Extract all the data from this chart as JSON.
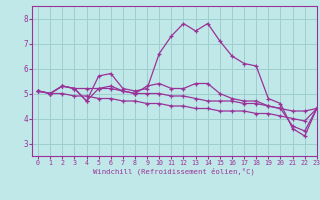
{
  "xlabel": "Windchill (Refroidissement éolien,°C)",
  "xlim": [
    -0.5,
    23
  ],
  "ylim": [
    2.5,
    8.5
  ],
  "yticks": [
    3,
    4,
    5,
    6,
    7,
    8
  ],
  "xticks": [
    0,
    1,
    2,
    3,
    4,
    5,
    6,
    7,
    8,
    9,
    10,
    11,
    12,
    13,
    14,
    15,
    16,
    17,
    18,
    19,
    20,
    21,
    22,
    23
  ],
  "bg_color": "#c0e8e8",
  "grid_color": "#9ecece",
  "line_color": "#993399",
  "lines": [
    [
      5.1,
      5.0,
      5.3,
      5.2,
      4.7,
      5.7,
      5.8,
      5.2,
      5.1,
      5.2,
      6.6,
      7.3,
      7.8,
      7.5,
      7.8,
      7.1,
      6.5,
      6.2,
      6.1,
      4.8,
      4.6,
      3.6,
      3.3,
      4.4
    ],
    [
      5.1,
      5.0,
      5.3,
      5.2,
      4.7,
      5.2,
      5.3,
      5.1,
      5.0,
      5.3,
      5.4,
      5.2,
      5.2,
      5.4,
      5.4,
      5.0,
      4.8,
      4.7,
      4.7,
      4.5,
      4.4,
      3.7,
      3.5,
      4.4
    ],
    [
      5.1,
      5.0,
      5.3,
      5.2,
      5.2,
      5.2,
      5.2,
      5.1,
      5.0,
      5.0,
      5.0,
      4.9,
      4.9,
      4.8,
      4.7,
      4.7,
      4.7,
      4.6,
      4.6,
      4.5,
      4.4,
      4.3,
      4.3,
      4.4
    ],
    [
      5.1,
      5.0,
      5.0,
      4.9,
      4.9,
      4.8,
      4.8,
      4.7,
      4.7,
      4.6,
      4.6,
      4.5,
      4.5,
      4.4,
      4.4,
      4.3,
      4.3,
      4.3,
      4.2,
      4.2,
      4.1,
      4.0,
      3.9,
      4.4
    ]
  ]
}
